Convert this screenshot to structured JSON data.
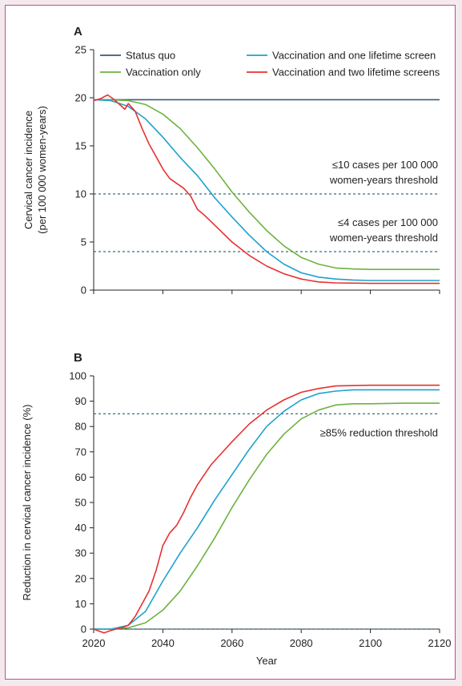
{
  "chart_data": [
    {
      "type": "line",
      "panel_label": "A",
      "xlabel": "",
      "ylabel_line1": "Cervical cancer incidence",
      "ylabel_line2": "(per 100 000 women-years)",
      "xlim": [
        2020,
        2120
      ],
      "ylim": [
        0,
        25
      ],
      "xticks": [
        2020,
        2040,
        2060,
        2080,
        2100,
        2120
      ],
      "yticks": [
        0,
        5,
        10,
        15,
        20,
        25
      ],
      "grid": false,
      "legend": "top",
      "series": [
        {
          "name": "Status quo",
          "color": "#3d5a73",
          "points": [
            [
              2020,
              19.8
            ],
            [
              2120,
              19.8
            ]
          ]
        },
        {
          "name": "Vaccination only",
          "color": "#6cb33f",
          "points": [
            [
              2020,
              19.8
            ],
            [
              2025,
              19.8
            ],
            [
              2030,
              19.7
            ],
            [
              2035,
              19.3
            ],
            [
              2040,
              18.3
            ],
            [
              2045,
              16.8
            ],
            [
              2050,
              14.8
            ],
            [
              2055,
              12.6
            ],
            [
              2060,
              10.2
            ],
            [
              2065,
              8.1
            ],
            [
              2070,
              6.2
            ],
            [
              2075,
              4.6
            ],
            [
              2080,
              3.4
            ],
            [
              2085,
              2.7
            ],
            [
              2090,
              2.3
            ],
            [
              2095,
              2.2
            ],
            [
              2100,
              2.15
            ],
            [
              2110,
              2.15
            ],
            [
              2120,
              2.15
            ]
          ]
        },
        {
          "name": "Vaccination and one lifetime screen",
          "color": "#1ea1cf",
          "points": [
            [
              2020,
              19.8
            ],
            [
              2025,
              19.7
            ],
            [
              2030,
              19.1
            ],
            [
              2035,
              17.8
            ],
            [
              2040,
              15.9
            ],
            [
              2045,
              13.8
            ],
            [
              2050,
              11.9
            ],
            [
              2055,
              9.6
            ],
            [
              2060,
              7.6
            ],
            [
              2065,
              5.7
            ],
            [
              2070,
              4.0
            ],
            [
              2075,
              2.7
            ],
            [
              2080,
              1.8
            ],
            [
              2085,
              1.35
            ],
            [
              2090,
              1.15
            ],
            [
              2095,
              1.05
            ],
            [
              2100,
              1.0
            ],
            [
              2110,
              1.0
            ],
            [
              2120,
              1.0
            ]
          ]
        },
        {
          "name": "Vaccination and two lifetime screens",
          "color": "#e8312f",
          "points": [
            [
              2020,
              19.7
            ],
            [
              2022,
              19.9
            ],
            [
              2024,
              20.3
            ],
            [
              2026,
              19.8
            ],
            [
              2029,
              18.8
            ],
            [
              2030,
              19.4
            ],
            [
              2032,
              18.6
            ],
            [
              2034,
              16.8
            ],
            [
              2036,
              15.2
            ],
            [
              2038,
              13.9
            ],
            [
              2040,
              12.6
            ],
            [
              2042,
              11.6
            ],
            [
              2044,
              11.1
            ],
            [
              2046,
              10.6
            ],
            [
              2048,
              9.8
            ],
            [
              2050,
              8.4
            ],
            [
              2052,
              7.8
            ],
            [
              2054,
              7.1
            ],
            [
              2056,
              6.4
            ],
            [
              2060,
              5.0
            ],
            [
              2065,
              3.6
            ],
            [
              2070,
              2.5
            ],
            [
              2075,
              1.7
            ],
            [
              2080,
              1.15
            ],
            [
              2085,
              0.85
            ],
            [
              2090,
              0.75
            ],
            [
              2100,
              0.7
            ],
            [
              2120,
              0.7
            ]
          ]
        }
      ],
      "thresholds": [
        {
          "value": 10,
          "label_line1": "≤10 cases per 100 000",
          "label_line2": "women-years threshold"
        },
        {
          "value": 4,
          "label_line1": "≤4 cases per 100 000",
          "label_line2": "women-years threshold"
        }
      ]
    },
    {
      "type": "line",
      "panel_label": "B",
      "xlabel": "Year",
      "ylabel": "Reduction in cervical cancer incidence (%)",
      "xlim": [
        2020,
        2120
      ],
      "ylim": [
        0,
        100
      ],
      "xticks": [
        2020,
        2040,
        2060,
        2080,
        2100,
        2120
      ],
      "yticks": [
        0,
        10,
        20,
        30,
        40,
        50,
        60,
        70,
        80,
        90,
        100
      ],
      "grid": false,
      "series": [
        {
          "name": "Vaccination only",
          "color": "#6cb33f",
          "points": [
            [
              2020,
              0
            ],
            [
              2025,
              0
            ],
            [
              2030,
              0.5
            ],
            [
              2035,
              2.5
            ],
            [
              2040,
              7.5
            ],
            [
              2045,
              15
            ],
            [
              2050,
              25
            ],
            [
              2055,
              36
            ],
            [
              2060,
              48
            ],
            [
              2065,
              59
            ],
            [
              2070,
              69
            ],
            [
              2075,
              77
            ],
            [
              2080,
              83
            ],
            [
              2085,
              86.5
            ],
            [
              2090,
              88.5
            ],
            [
              2095,
              89
            ],
            [
              2100,
              89
            ],
            [
              2110,
              89.2
            ],
            [
              2120,
              89.2
            ]
          ]
        },
        {
          "name": "Vaccination and one lifetime screen",
          "color": "#1ea1cf",
          "points": [
            [
              2020,
              0
            ],
            [
              2025,
              0
            ],
            [
              2030,
              1.5
            ],
            [
              2035,
              7
            ],
            [
              2040,
              19
            ],
            [
              2045,
              30
            ],
            [
              2050,
              40
            ],
            [
              2055,
              51
            ],
            [
              2060,
              61
            ],
            [
              2065,
              71
            ],
            [
              2070,
              80
            ],
            [
              2075,
              86
            ],
            [
              2080,
              90.5
            ],
            [
              2085,
              93
            ],
            [
              2090,
              94
            ],
            [
              2095,
              94.5
            ],
            [
              2100,
              94.5
            ],
            [
              2120,
              94.5
            ]
          ]
        },
        {
          "name": "Vaccination and two lifetime screens",
          "color": "#e8312f",
          "points": [
            [
              2020,
              0
            ],
            [
              2023,
              -1.5
            ],
            [
              2025,
              -0.5
            ],
            [
              2028,
              0.5
            ],
            [
              2030,
              1.5
            ],
            [
              2032,
              5
            ],
            [
              2034,
              10
            ],
            [
              2036,
              15
            ],
            [
              2038,
              23
            ],
            [
              2040,
              33
            ],
            [
              2042,
              38
            ],
            [
              2044,
              41
            ],
            [
              2046,
              46
            ],
            [
              2048,
              52
            ],
            [
              2050,
              57
            ],
            [
              2052,
              61
            ],
            [
              2054,
              65
            ],
            [
              2056,
              68
            ],
            [
              2060,
              74
            ],
            [
              2065,
              81
            ],
            [
              2070,
              86.5
            ],
            [
              2075,
              90.5
            ],
            [
              2080,
              93.5
            ],
            [
              2085,
              95
            ],
            [
              2090,
              96
            ],
            [
              2100,
              96.3
            ],
            [
              2120,
              96.3
            ]
          ]
        }
      ],
      "thresholds": [
        {
          "value": 85,
          "label": "≥85% reduction threshold"
        },
        {
          "value": 0,
          "label": ""
        }
      ]
    }
  ]
}
